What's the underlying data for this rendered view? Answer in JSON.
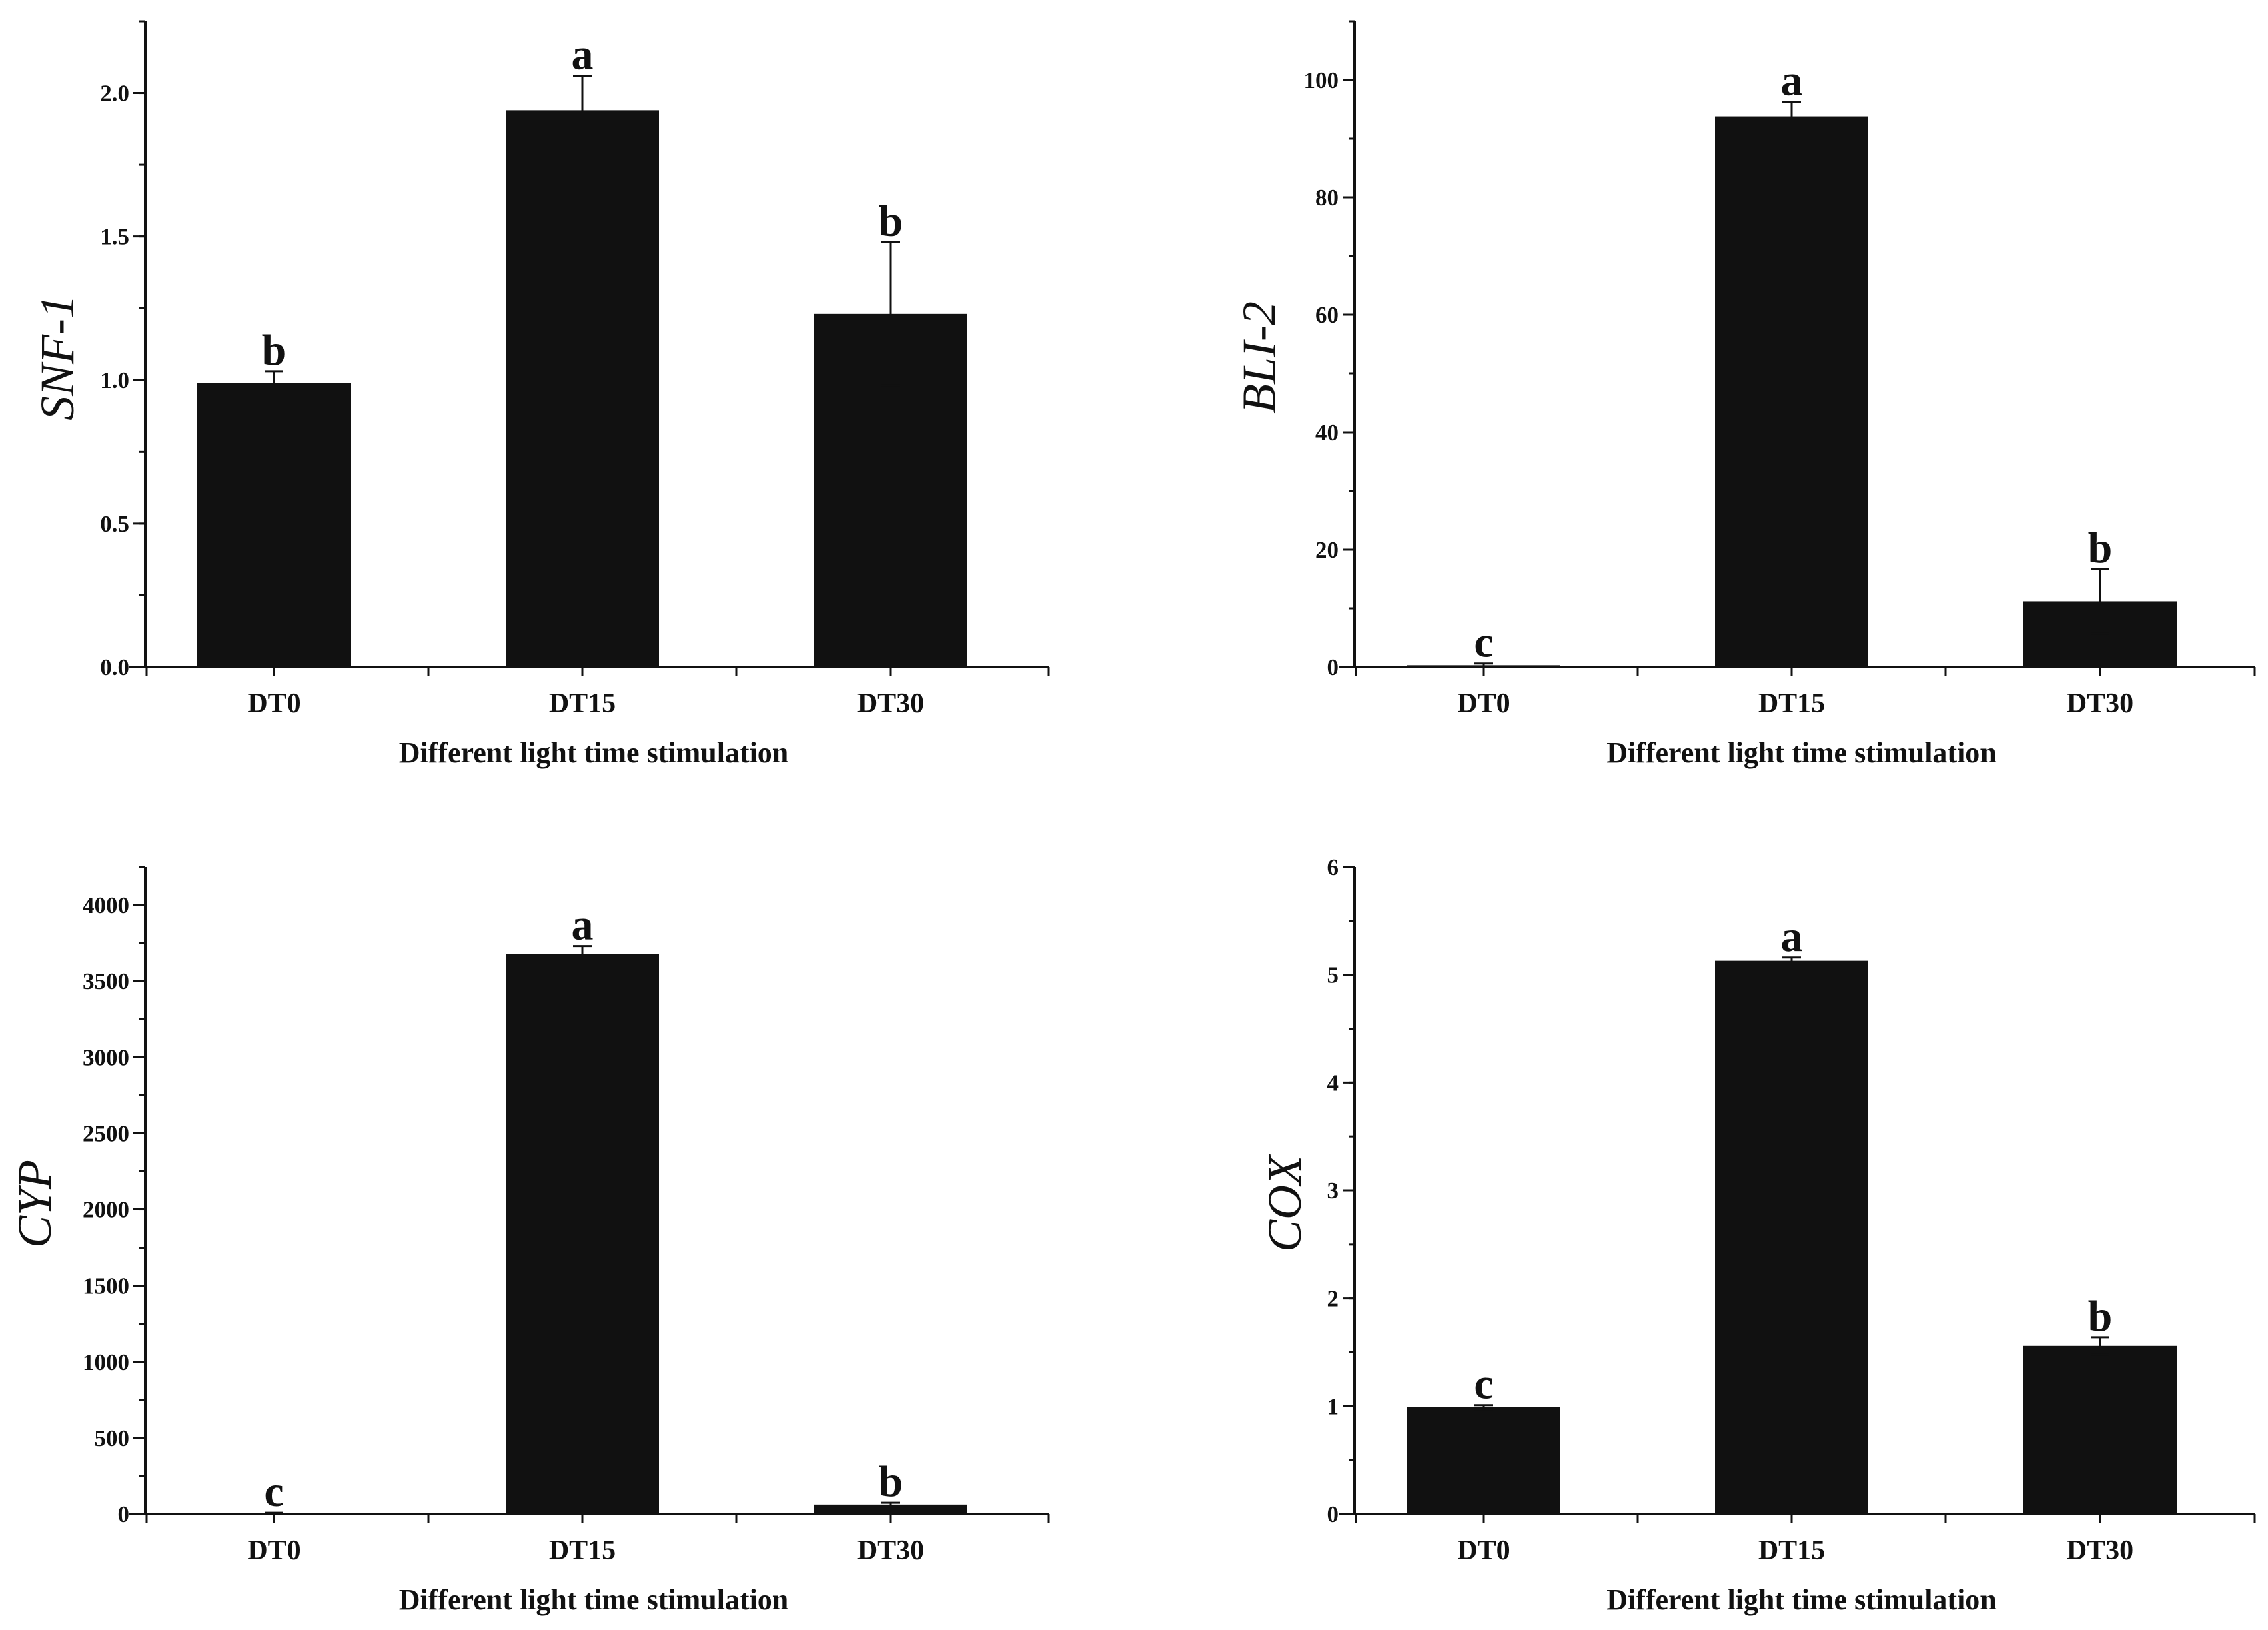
{
  "colors": {
    "bar": "#111111",
    "axis": "#111111",
    "background": "#ffffff"
  },
  "chart_data": [
    {
      "type": "bar",
      "title": "",
      "xlabel": "Different light time stimulation",
      "ylabel": "SNF-1",
      "categories": [
        "DT0",
        "DT15",
        "DT30"
      ],
      "values": [
        0.99,
        1.94,
        1.23
      ],
      "errors": [
        0.04,
        0.12,
        0.25
      ],
      "significance": [
        "b",
        "a",
        "b"
      ],
      "ylim": [
        0,
        2.25
      ],
      "yticks": [
        0.0,
        0.5,
        1.0,
        1.5,
        2.0
      ],
      "ytick_labels": [
        "0.0",
        "0.5",
        "1.0",
        "1.5",
        "2.0"
      ],
      "minor_step": 0.25
    },
    {
      "type": "bar",
      "title": "",
      "xlabel": "Different light time stimulation",
      "ylabel": "BLI-2",
      "categories": [
        "DT0",
        "DT15",
        "DT30"
      ],
      "values": [
        0.3,
        93.8,
        11.2
      ],
      "errors": [
        0.3,
        2.5,
        5.5
      ],
      "significance": [
        "c",
        "a",
        "b"
      ],
      "ylim": [
        0,
        110
      ],
      "yticks": [
        0,
        20,
        40,
        60,
        80,
        100
      ],
      "ytick_labels": [
        "0",
        "20",
        "40",
        "60",
        "80",
        "100"
      ],
      "minor_step": 10
    },
    {
      "type": "bar",
      "title": "",
      "xlabel": "Different light time stimulation",
      "ylabel": "CYP",
      "categories": [
        "DT0",
        "DT15",
        "DT30"
      ],
      "values": [
        5,
        3680,
        62
      ],
      "errors": [
        3,
        50,
        12
      ],
      "significance": [
        "c",
        "a",
        "b"
      ],
      "ylim": [
        0,
        4250
      ],
      "yticks": [
        0,
        500,
        1000,
        1500,
        2000,
        2500,
        3000,
        3500,
        4000
      ],
      "ytick_labels": [
        "0",
        "500",
        "1000",
        "1500",
        "2000",
        "2500",
        "3000",
        "3500",
        "4000"
      ],
      "minor_step": 250
    },
    {
      "type": "bar",
      "title": "",
      "xlabel": "Different light time stimulation",
      "ylabel": "COX",
      "categories": [
        "DT0",
        "DT15",
        "DT30"
      ],
      "values": [
        0.99,
        5.13,
        1.56
      ],
      "errors": [
        0.02,
        0.03,
        0.08
      ],
      "significance": [
        "c",
        "a",
        "b"
      ],
      "ylim": [
        0,
        6
      ],
      "yticks": [
        0,
        1,
        2,
        3,
        4,
        5,
        6
      ],
      "ytick_labels": [
        "0",
        "1",
        "2",
        "3",
        "4",
        "5",
        "6"
      ],
      "minor_step": 0.5
    }
  ]
}
